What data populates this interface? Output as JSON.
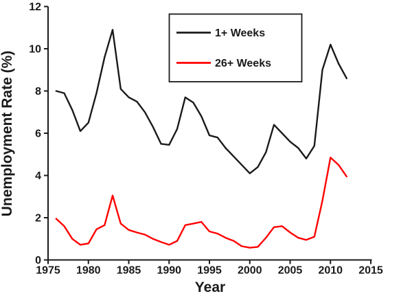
{
  "chart_data": {
    "type": "line",
    "xlabel": "Year",
    "ylabel": "Unemployment Rate (%)",
    "xlim": [
      1975,
      2015
    ],
    "ylim": [
      0,
      12
    ],
    "x_ticks": [
      1975,
      1980,
      1985,
      1990,
      1995,
      2000,
      2005,
      2010,
      2015
    ],
    "y_ticks": [
      0,
      2,
      4,
      6,
      8,
      10,
      12
    ],
    "grid": false,
    "legend_position": "top-center-inside",
    "axis_color": "#1a1a1a",
    "background_color": "#ffffff",
    "x": [
      1976,
      1977,
      1978,
      1979,
      1980,
      1981,
      1982,
      1983,
      1984,
      1985,
      1986,
      1987,
      1988,
      1989,
      1990,
      1991,
      1992,
      1993,
      1994,
      1995,
      1996,
      1997,
      1998,
      1999,
      2000,
      2001,
      2002,
      2003,
      2004,
      2005,
      2006,
      2007,
      2008,
      2009,
      2010,
      2011,
      2012
    ],
    "series": [
      {
        "name": "1+ Weeks",
        "color": "#1a1a1a",
        "values": [
          8.0,
          7.9,
          7.1,
          6.1,
          6.5,
          7.9,
          9.6,
          10.9,
          8.1,
          7.7,
          7.5,
          7.0,
          6.3,
          5.5,
          5.45,
          6.2,
          7.7,
          7.45,
          6.8,
          5.9,
          5.8,
          5.3,
          4.9,
          4.5,
          4.1,
          4.4,
          5.1,
          6.4,
          6.0,
          5.6,
          5.3,
          4.8,
          5.4,
          9.0,
          10.2,
          9.3,
          8.6
        ]
      },
      {
        "name": "26+ Weeks",
        "color": "#ff0000",
        "values": [
          1.95,
          1.6,
          1.0,
          0.72,
          0.78,
          1.45,
          1.65,
          3.05,
          1.72,
          1.42,
          1.3,
          1.2,
          1.0,
          0.85,
          0.72,
          0.9,
          1.65,
          1.72,
          1.8,
          1.35,
          1.25,
          1.05,
          0.9,
          0.65,
          0.58,
          0.62,
          1.05,
          1.55,
          1.6,
          1.3,
          1.05,
          0.95,
          1.1,
          2.8,
          4.85,
          4.5,
          3.95
        ]
      }
    ]
  }
}
